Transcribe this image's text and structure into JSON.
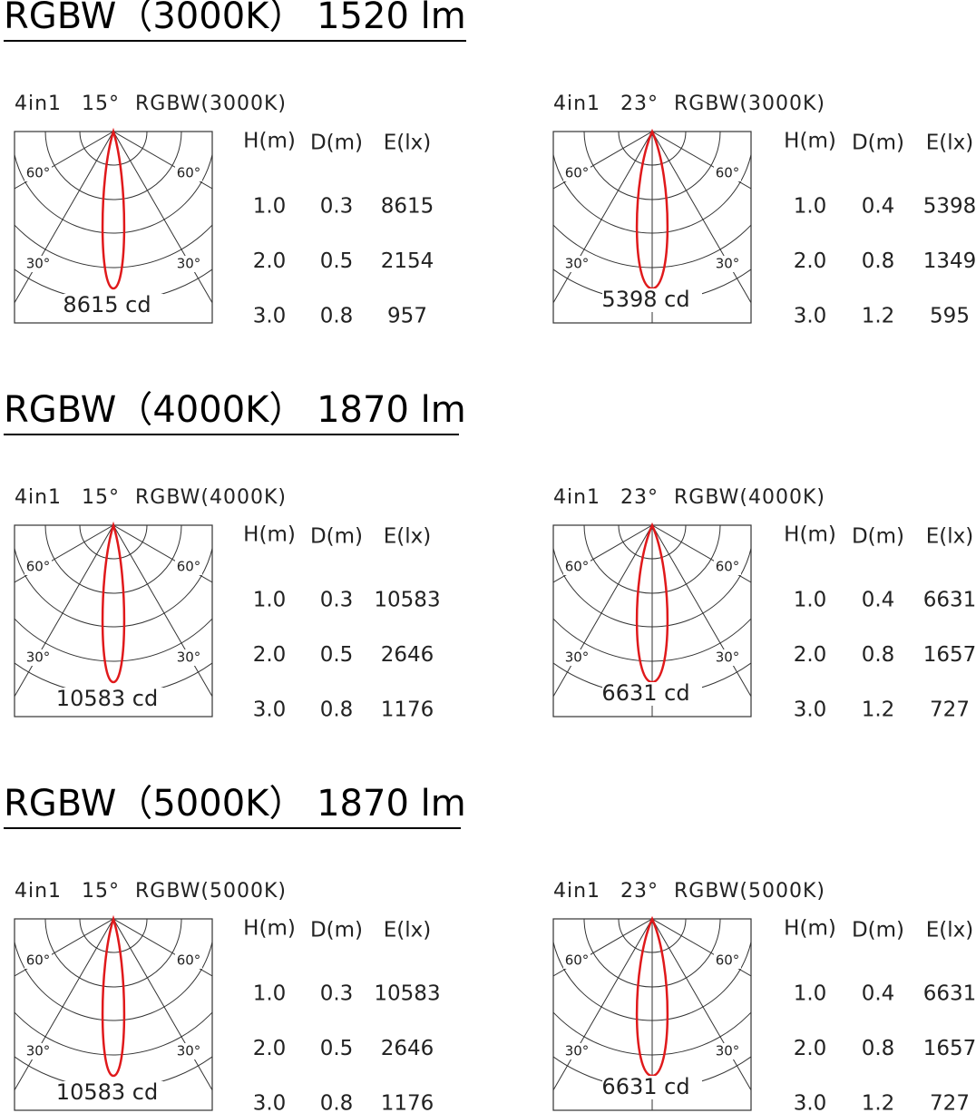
{
  "sections": [
    {
      "title": "RGBW（3000K） 1520 lm",
      "panels": [
        {
          "model": "4in1",
          "beam": "15°",
          "variant": "RGBW(3000K)",
          "angles": [
            "60°",
            "60°",
            "30°",
            "30°"
          ],
          "peak": "8615 cd",
          "headers": [
            "H(m)",
            "D(m)",
            "E(lx)"
          ],
          "rows": [
            [
              "1.0",
              "0.3",
              "8615"
            ],
            [
              "2.0",
              "0.5",
              "2154"
            ],
            [
              "3.0",
              "0.8",
              "957"
            ]
          ]
        },
        {
          "model": "4in1",
          "beam": "23°",
          "variant": "RGBW(3000K)",
          "angles": [
            "60°",
            "60°",
            "30°",
            "30°"
          ],
          "peak": "5398 cd",
          "headers": [
            "H(m)",
            "D(m)",
            "E(lx)"
          ],
          "rows": [
            [
              "1.0",
              "0.4",
              "5398"
            ],
            [
              "2.0",
              "0.8",
              "1349"
            ],
            [
              "3.0",
              "1.2",
              "595"
            ]
          ]
        }
      ]
    },
    {
      "title": "RGBW（4000K） 1870 lm",
      "panels": [
        {
          "model": "4in1",
          "beam": "15°",
          "variant": "RGBW(4000K)",
          "angles": [
            "60°",
            "60°",
            "30°",
            "30°"
          ],
          "peak": "10583 cd",
          "headers": [
            "H(m)",
            "D(m)",
            "E(lx)"
          ],
          "rows": [
            [
              "1.0",
              "0.3",
              "10583"
            ],
            [
              "2.0",
              "0.5",
              "2646"
            ],
            [
              "3.0",
              "0.8",
              "1176"
            ]
          ]
        },
        {
          "model": "4in1",
          "beam": "23°",
          "variant": "RGBW(4000K)",
          "angles": [
            "60°",
            "60°",
            "30°",
            "30°"
          ],
          "peak": "6631 cd",
          "headers": [
            "H(m)",
            "D(m)",
            "E(lx)"
          ],
          "rows": [
            [
              "1.0",
              "0.4",
              "6631"
            ],
            [
              "2.0",
              "0.8",
              "1657"
            ],
            [
              "3.0",
              "1.2",
              "727"
            ]
          ]
        }
      ]
    },
    {
      "title": "RGBW（5000K） 1870 lm",
      "panels": [
        {
          "model": "4in1",
          "beam": "15°",
          "variant": "RGBW(5000K)",
          "angles": [
            "60°",
            "60°",
            "30°",
            "30°"
          ],
          "peak": "10583 cd",
          "headers": [
            "H(m)",
            "D(m)",
            "E(lx)"
          ],
          "rows": [
            [
              "1.0",
              "0.3",
              "10583"
            ],
            [
              "2.0",
              "0.5",
              "2646"
            ],
            [
              "3.0",
              "0.8",
              "1176"
            ]
          ]
        },
        {
          "model": "4in1",
          "beam": "23°",
          "variant": "RGBW(5000K)",
          "angles": [
            "60°",
            "60°",
            "30°",
            "30°"
          ],
          "peak": "6631 cd",
          "headers": [
            "H(m)",
            "D(m)",
            "E(lx)"
          ],
          "rows": [
            [
              "1.0",
              "0.4",
              "6631"
            ],
            [
              "2.0",
              "0.8",
              "1657"
            ],
            [
              "3.0",
              "1.2",
              "727"
            ]
          ]
        }
      ]
    }
  ]
}
